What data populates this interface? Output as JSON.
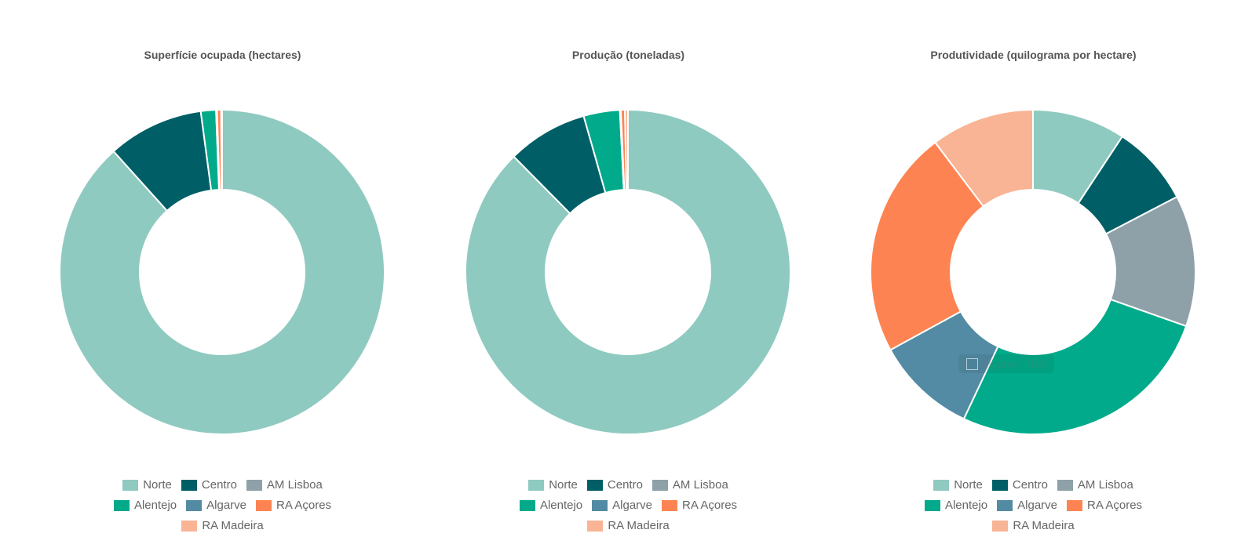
{
  "chart_data": [
    {
      "type": "pie",
      "donut": true,
      "title": "Superfície ocupada (hectares)",
      "categories": [
        "Norte",
        "Centro",
        "AM Lisboa",
        "Alentejo",
        "Algarve",
        "RA Açores",
        "RA Madeira"
      ],
      "values": [
        88.0,
        9.5,
        0.0,
        1.5,
        0.1,
        0.4,
        0.1
      ],
      "legend_position": "bottom"
    },
    {
      "type": "pie",
      "donut": true,
      "title": "Produção (toneladas)",
      "categories": [
        "Norte",
        "Centro",
        "AM Lisboa",
        "Alentejo",
        "Algarve",
        "RA Açores",
        "RA Madeira"
      ],
      "values": [
        87.6,
        8.0,
        0.0,
        3.6,
        0.1,
        0.4,
        0.3
      ],
      "legend_position": "bottom"
    },
    {
      "type": "pie",
      "donut": true,
      "title": "Produtividade (quilograma por hectare)",
      "categories": [
        "Norte",
        "Centro",
        "AM Lisboa",
        "Alentejo",
        "Algarve",
        "RA Açores",
        "RA Madeira"
      ],
      "values": [
        848,
        738,
        1197,
        2433,
        918,
        2076,
        941
      ],
      "legend_position": "bottom",
      "tooltip": {
        "label": "Algarve",
        "value": "918"
      }
    }
  ],
  "colors": [
    "#8fcac0",
    "#005f66",
    "#8ea1a9",
    "#00aa8a",
    "#528ba3",
    "#fd8452",
    "#f9b395"
  ]
}
